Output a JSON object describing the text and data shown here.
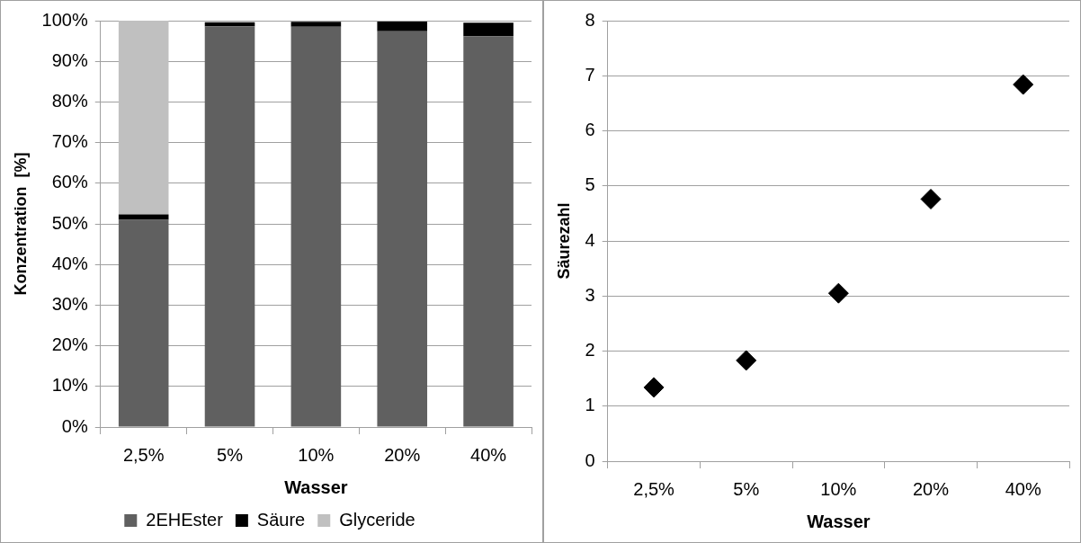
{
  "chart_data": [
    {
      "type": "bar",
      "stacked": true,
      "categories": [
        "2,5%",
        "5%",
        "10%",
        "20%",
        "40%"
      ],
      "series": [
        {
          "name": "2EHEster",
          "color": "#606060",
          "values": [
            51.0,
            98.6,
            98.5,
            97.4,
            96.2
          ]
        },
        {
          "name": "Säure",
          "color": "#000000",
          "values": [
            1.3,
            1.0,
            1.2,
            2.4,
            3.3
          ]
        },
        {
          "name": "Glyceride",
          "color": "#c0c0c0",
          "values": [
            47.7,
            null,
            null,
            null,
            null
          ]
        }
      ],
      "ylim": [
        0,
        100
      ],
      "yticks": [
        {
          "value": 0,
          "label": "0%"
        },
        {
          "value": 10,
          "label": "10%"
        },
        {
          "value": 20,
          "label": "20%"
        },
        {
          "value": 30,
          "label": "30%"
        },
        {
          "value": 40,
          "label": "40%"
        },
        {
          "value": 50,
          "label": "50%"
        },
        {
          "value": 60,
          "label": "60%"
        },
        {
          "value": 70,
          "label": "70%"
        },
        {
          "value": 80,
          "label": "80%"
        },
        {
          "value": 90,
          "label": "90%"
        },
        {
          "value": 100,
          "label": "100%"
        }
      ],
      "xlabel": "Wasser",
      "ylabel": "Konzentration  [%]",
      "grid": "y",
      "legend": "bottom"
    },
    {
      "type": "scatter",
      "categories": [
        "2,5%",
        "5%",
        "10%",
        "20%",
        "40%"
      ],
      "series": [
        {
          "color": "#000000",
          "values": [
            1.34,
            1.83,
            3.05,
            4.76,
            6.84
          ]
        }
      ],
      "ylim": [
        0,
        8
      ],
      "yticks": [
        0,
        1,
        2,
        3,
        4,
        5,
        6,
        7,
        8
      ],
      "xlabel": "Wasser",
      "ylabel": "Säurezahl",
      "grid": "y",
      "marker": "diamond"
    }
  ]
}
